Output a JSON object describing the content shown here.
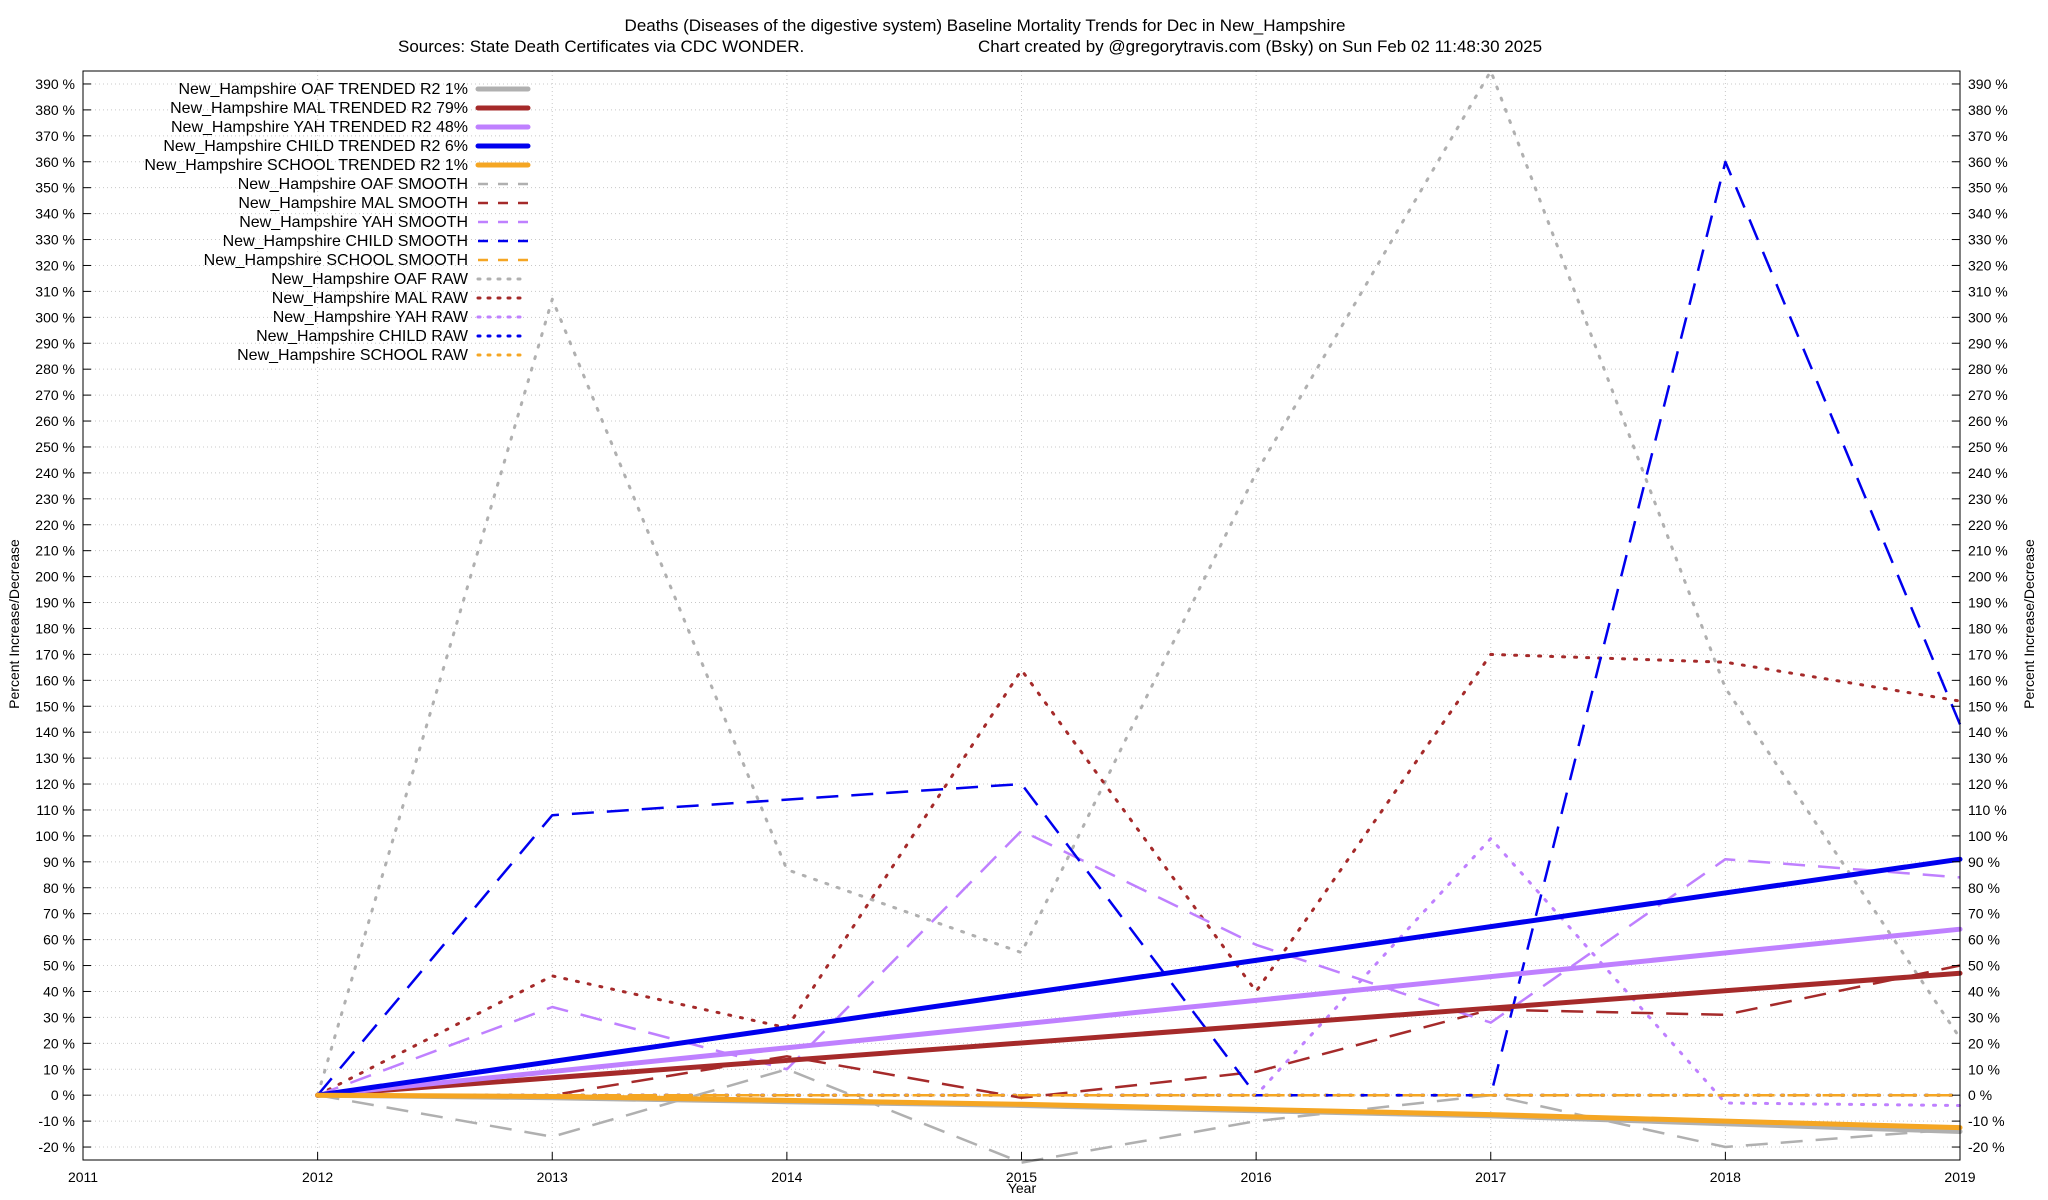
{
  "chart_data": {
    "type": "line",
    "title": "Deaths (Diseases of the digestive system)  Baseline Mortality Trends for Dec in New_Hampshire",
    "subtitle_left": "Sources: State Death Certificates via CDC WONDER.",
    "subtitle_right": "Chart created by @gregorytravis.com (Bsky) on Sun Feb 02 11:48:30 2025",
    "xlabel": "Year",
    "ylabel": "Percent Increase/Decrease",
    "ylabel_right": "Percent Increase/Decrease",
    "xlim": [
      2011,
      2019
    ],
    "ylim": [
      -25,
      395
    ],
    "x_ticks": [
      2011,
      2012,
      2013,
      2014,
      2015,
      2016,
      2017,
      2018,
      2019
    ],
    "y_ticks": [
      -20,
      -10,
      0,
      10,
      20,
      30,
      40,
      50,
      60,
      70,
      80,
      90,
      100,
      110,
      120,
      130,
      140,
      150,
      160,
      170,
      180,
      190,
      200,
      210,
      220,
      230,
      240,
      250,
      260,
      270,
      280,
      290,
      300,
      310,
      320,
      330,
      340,
      350,
      360,
      370,
      380,
      390
    ],
    "y_tick_suffix": " %",
    "grid": true,
    "legend_position": "top-left",
    "series": [
      {
        "name": "New_Hampshire OAF TRENDED R2  1%",
        "style": "solid",
        "color": "#b0b0b0",
        "x": [
          2012,
          2013,
          2014,
          2015,
          2016,
          2017,
          2018,
          2019
        ],
        "y": [
          0,
          -1,
          -2.5,
          -4,
          -6,
          -8,
          -11,
          -14
        ]
      },
      {
        "name": "New_Hampshire MAL TRENDED R2  79%",
        "style": "solid",
        "color": "#a52a2a",
        "x": [
          2012,
          2019
        ],
        "y": [
          0,
          47
        ]
      },
      {
        "name": "New_Hampshire YAH TRENDED R2  48%",
        "style": "solid",
        "color": "#bf80ff",
        "x": [
          2012,
          2019
        ],
        "y": [
          0,
          64
        ]
      },
      {
        "name": "New_Hampshire CHILD TRENDED R2  6%",
        "style": "solid",
        "color": "#0000ee",
        "x": [
          2012,
          2019
        ],
        "y": [
          0,
          91
        ]
      },
      {
        "name": "New_Hampshire SCHOOL TRENDED R2  1%",
        "style": "solid",
        "color": "#f5a623",
        "x": [
          2012,
          2013,
          2014,
          2015,
          2016,
          2017,
          2018,
          2019
        ],
        "y": [
          0,
          -0.5,
          -2,
          -3.5,
          -5.5,
          -7.5,
          -10,
          -12.5
        ]
      },
      {
        "name": "New_Hampshire OAF SMOOTH",
        "style": "dashed",
        "color": "#b0b0b0",
        "x": [
          2012,
          2013,
          2014,
          2015,
          2016,
          2017,
          2018,
          2019
        ],
        "y": [
          0,
          -16,
          10,
          -26,
          -10,
          0,
          -20,
          -13
        ]
      },
      {
        "name": "New_Hampshire MAL SMOOTH",
        "style": "dashed",
        "color": "#a52a2a",
        "x": [
          2012,
          2013,
          2014,
          2015,
          2016,
          2017,
          2018,
          2019
        ],
        "y": [
          0,
          0,
          15,
          -1,
          9,
          33,
          31,
          50
        ]
      },
      {
        "name": "New_Hampshire YAH SMOOTH",
        "style": "dashed",
        "color": "#bf80ff",
        "x": [
          2012,
          2013,
          2014,
          2015,
          2016,
          2017,
          2018,
          2019
        ],
        "y": [
          0,
          34,
          10,
          102,
          58,
          28,
          91,
          84
        ]
      },
      {
        "name": "New_Hampshire CHILD SMOOTH",
        "style": "dashed",
        "color": "#0000ee",
        "x": [
          2012,
          2013,
          2014,
          2015,
          2016,
          2017,
          2018,
          2019
        ],
        "y": [
          0,
          108,
          114,
          120,
          0,
          0,
          360,
          143
        ]
      },
      {
        "name": "New_Hampshire SCHOOL SMOOTH",
        "style": "dashed",
        "color": "#f5a623",
        "x": [
          2012,
          2013,
          2014,
          2015,
          2016,
          2017,
          2018,
          2019
        ],
        "y": [
          0,
          0,
          0,
          0,
          0,
          0,
          0,
          0
        ]
      },
      {
        "name": "New_Hampshire OAF RAW",
        "style": "dotted",
        "color": "#b0b0b0",
        "x": [
          2012,
          2013,
          2014,
          2015,
          2016,
          2017,
          2018,
          2019
        ],
        "y": [
          0,
          307,
          87,
          55,
          240,
          395,
          157,
          22
        ]
      },
      {
        "name": "New_Hampshire MAL RAW",
        "style": "dotted",
        "color": "#a52a2a",
        "x": [
          2012,
          2013,
          2014,
          2015,
          2016,
          2017,
          2018,
          2019
        ],
        "y": [
          0,
          46,
          26,
          164,
          40,
          170,
          167,
          152
        ]
      },
      {
        "name": "New_Hampshire YAH RAW",
        "style": "dotted",
        "color": "#bf80ff",
        "x": [
          2012,
          2013,
          2014,
          2015,
          2016,
          2017,
          2018,
          2019
        ],
        "y": [
          0,
          0,
          0,
          0,
          0,
          99,
          -3,
          -4
        ]
      },
      {
        "name": "New_Hampshire CHILD RAW",
        "style": "dotted",
        "color": "#0000ee",
        "x": [
          2012,
          2013,
          2014,
          2015,
          2016,
          2017,
          2018,
          2019
        ],
        "y": [
          0,
          0,
          0,
          0,
          0,
          0,
          0,
          0
        ]
      },
      {
        "name": "New_Hampshire SCHOOL RAW",
        "style": "dotted",
        "color": "#f5a623",
        "x": [
          2012,
          2013,
          2014,
          2015,
          2016,
          2017,
          2018,
          2019
        ],
        "y": [
          0,
          0,
          0,
          0,
          0,
          0,
          0,
          0
        ]
      }
    ]
  }
}
